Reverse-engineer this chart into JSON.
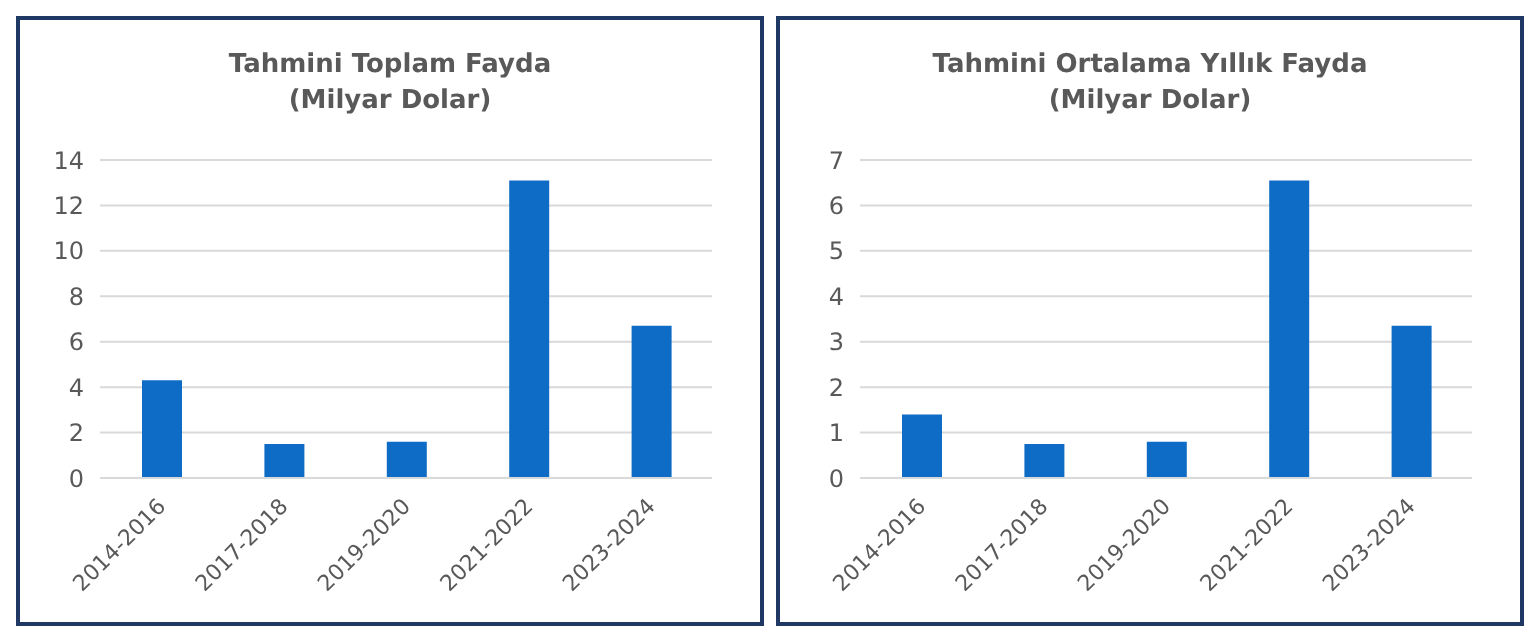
{
  "chart_data": [
    {
      "type": "bar",
      "title": "Tahmini Toplam Fayda\n(Milyar Dolar)",
      "categories": [
        "2014-2016",
        "2017-2018",
        "2019-2020",
        "2021-2022",
        "2023-2024"
      ],
      "values": [
        4.3,
        1.5,
        1.6,
        13.1,
        6.7
      ],
      "color": "#0f6cc6",
      "ylim": [
        0,
        14
      ],
      "yticks": [
        0,
        2,
        4,
        6,
        8,
        10,
        12,
        14
      ],
      "grid": "y"
    },
    {
      "type": "bar",
      "title": "Tahmini Ortalama Yıllık Fayda\n(Milyar Dolar)",
      "categories": [
        "2014-2016",
        "2017-2018",
        "2019-2020",
        "2021-2022",
        "2023-2024"
      ],
      "values": [
        1.4,
        0.75,
        0.8,
        6.55,
        3.35
      ],
      "color": "#0f6cc6",
      "ylim": [
        0,
        7
      ],
      "yticks": [
        0,
        1,
        2,
        3,
        4,
        5,
        6,
        7
      ],
      "grid": "y"
    }
  ]
}
